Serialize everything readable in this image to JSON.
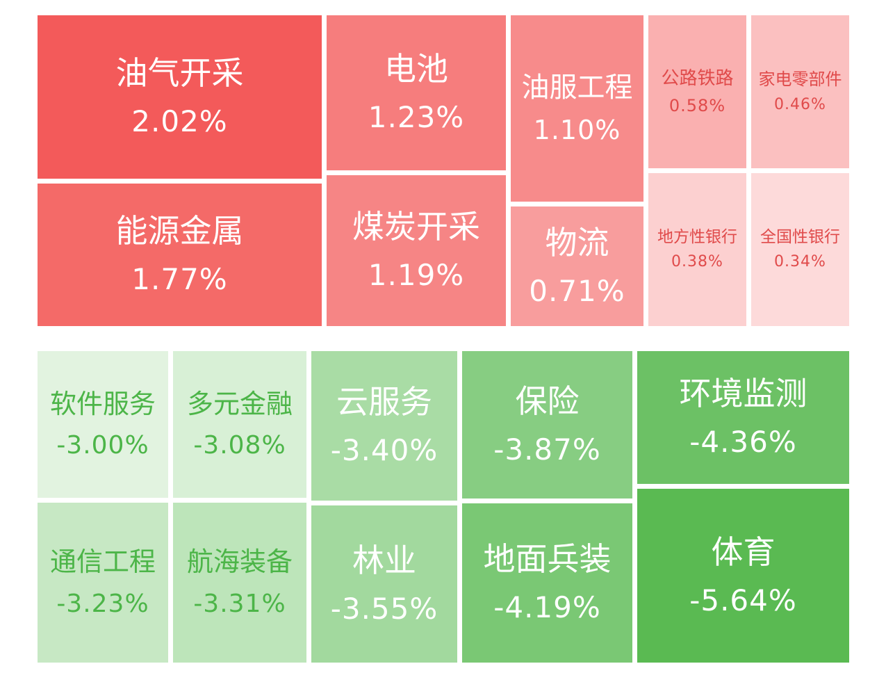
{
  "chart_data": {
    "type": "heatmap",
    "groups": [
      {
        "name": "",
        "tiles": [
          {
            "name": "油气开采",
            "value": 2.02,
            "label": "2.02%",
            "bg": "#f35a5a",
            "fg": "#ffffff"
          },
          {
            "name": "能源金属",
            "value": 1.77,
            "label": "1.77%",
            "bg": "#f46a68",
            "fg": "#ffffff"
          },
          {
            "name": "电池",
            "value": 1.23,
            "label": "1.23%",
            "bg": "#f67d7d",
            "fg": "#ffffff"
          },
          {
            "name": "煤炭开采",
            "value": 1.19,
            "label": "1.19%",
            "bg": "#f68585",
            "fg": "#ffffff"
          },
          {
            "name": "油服工程",
            "value": 1.1,
            "label": "1.10%",
            "bg": "#f78b8b",
            "fg": "#ffffff"
          },
          {
            "name": "物流",
            "value": 0.71,
            "label": "0.71%",
            "bg": "#f89d9d",
            "fg": "#ffffff"
          },
          {
            "name": "公路铁路",
            "value": 0.58,
            "label": "0.58%",
            "bg": "#fab0b0",
            "fg": "#e04a4a"
          },
          {
            "name": "家电零部件",
            "value": 0.46,
            "label": "0.46%",
            "bg": "#fbc0c0",
            "fg": "#e04a4a"
          },
          {
            "name": "地方性银行",
            "value": 0.38,
            "label": "0.38%",
            "bg": "#fcd0d0",
            "fg": "#e04a4a"
          },
          {
            "name": "全国性银行",
            "value": 0.34,
            "label": "0.34%",
            "bg": "#fddada",
            "fg": "#e04a4a"
          }
        ]
      },
      {
        "name": "",
        "tiles": [
          {
            "name": "软件服务",
            "value": -3.0,
            "label": "-3.00%",
            "bg": "#e2f3e0",
            "fg": "#4cb548"
          },
          {
            "name": "多元金融",
            "value": -3.08,
            "label": "-3.08%",
            "bg": "#d8f0d6",
            "fg": "#4cb548"
          },
          {
            "name": "通信工程",
            "value": -3.23,
            "label": "-3.23%",
            "bg": "#c7e8c4",
            "fg": "#4cb548"
          },
          {
            "name": "航海装备",
            "value": -3.31,
            "label": "-3.31%",
            "bg": "#bde5ba",
            "fg": "#4cb548"
          },
          {
            "name": "云服务",
            "value": -3.4,
            "label": "-3.40%",
            "bg": "#a9dca5",
            "fg": "#ffffff"
          },
          {
            "name": "林业",
            "value": -3.55,
            "label": "-3.55%",
            "bg": "#a2d99e",
            "fg": "#ffffff"
          },
          {
            "name": "保险",
            "value": -3.87,
            "label": "-3.87%",
            "bg": "#87cd82",
            "fg": "#ffffff"
          },
          {
            "name": "地面兵装",
            "value": -4.19,
            "label": "-4.19%",
            "bg": "#7ac874",
            "fg": "#ffffff"
          },
          {
            "name": "环境监测",
            "value": -4.36,
            "label": "-4.36%",
            "bg": "#6cc165",
            "fg": "#ffffff"
          },
          {
            "name": "体育",
            "value": -5.64,
            "label": "-5.64%",
            "bg": "#5aba52",
            "fg": "#ffffff"
          }
        ]
      }
    ]
  }
}
